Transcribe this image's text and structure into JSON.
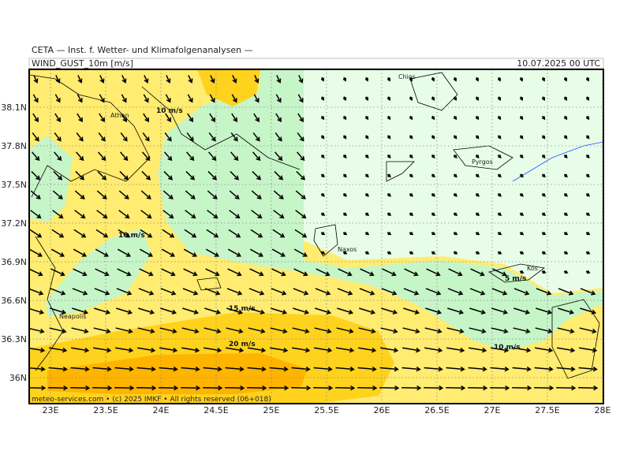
{
  "header": {
    "source": "CETA — Inst. f. Wetter- und Klimafolgenanalysen —",
    "field": "WIND_GUST_10m [m/s]",
    "date": "10.07.2025 00 UTC"
  },
  "axes": {
    "lat_labels": [
      "38.1N",
      "37.8N",
      "37.5N",
      "37.2N",
      "36.9N",
      "36.6N",
      "36.3N",
      "36N"
    ],
    "lon_labels": [
      "23E",
      "23.5E",
      "24E",
      "24.5E",
      "25E",
      "25.5E",
      "26E",
      "26.5E",
      "27E",
      "27.5E",
      "28E"
    ]
  },
  "places": [
    "Athen",
    "Chios",
    "Pyrgos",
    "Naxos",
    "Kos",
    "Neapolis"
  ],
  "contour_labels": [
    "10 m/s",
    "10 m/s",
    "15 m/s",
    "20 m/s",
    "5 m/s",
    "10 m/s"
  ],
  "footer": "meteo-services.com • (c) 2025 IMKF • All rights reserved (06+018)"
}
